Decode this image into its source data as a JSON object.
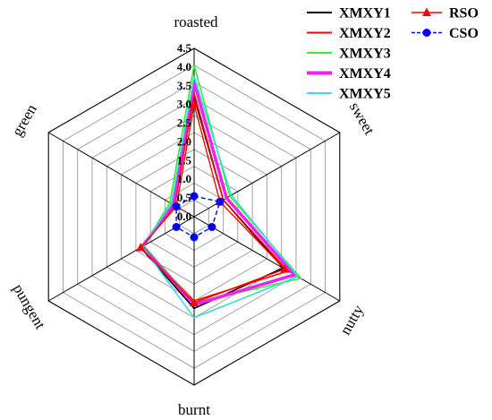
{
  "chart_data": {
    "type": "radar",
    "title": "",
    "axes": [
      "roasted",
      "sweet",
      "nutty",
      "burnt",
      "pungent",
      "green"
    ],
    "ticks": [
      "0.0",
      "0.5",
      "1.0",
      "1.5",
      "2.0",
      "2.5",
      "3.0",
      "3.5",
      "4.0",
      "4.5"
    ],
    "range": [
      0,
      4.5
    ],
    "grid": true,
    "legend_position": "top-right",
    "series": [
      {
        "name": "XMXY1",
        "color": "#000000",
        "marker": "none",
        "values": [
          3.2,
          0.9,
          2.75,
          2.45,
          1.65,
          0.65
        ]
      },
      {
        "name": "XMXY2",
        "color": "#ff0000",
        "marker": "none",
        "values": [
          3.3,
          0.9,
          2.9,
          2.25,
          1.6,
          0.6
        ]
      },
      {
        "name": "XMXY3",
        "color": "#33ee33",
        "marker": "none",
        "values": [
          4.05,
          1.1,
          3.3,
          2.3,
          1.55,
          0.75
        ]
      },
      {
        "name": "XMXY4",
        "color": "#ee22ee",
        "marker": "none",
        "values": [
          3.6,
          1.0,
          3.1,
          2.35,
          1.6,
          0.65
        ]
      },
      {
        "name": "XMXY5",
        "color": "#33dddd",
        "marker": "none",
        "values": [
          3.75,
          1.15,
          3.2,
          2.7,
          1.6,
          0.7
        ]
      },
      {
        "name": "RSO",
        "color": "#ff0000",
        "marker": "triangle",
        "values": [
          3.0,
          0.8,
          2.8,
          2.3,
          1.65,
          0.55
        ]
      },
      {
        "name": "CSO",
        "color": "#0000ff",
        "marker": "circle",
        "values": [
          0.55,
          0.8,
          0.55,
          0.55,
          0.55,
          0.55
        ]
      }
    ]
  }
}
